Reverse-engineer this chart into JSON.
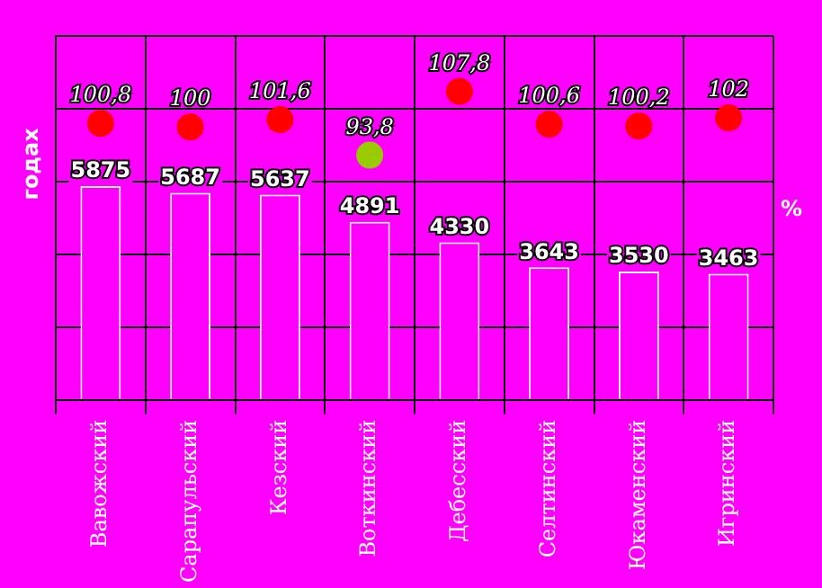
{
  "chart_data": {
    "type": "bar",
    "ylabel": "годах",
    "y2label": "%",
    "categories": [
      "Вавожский",
      "Сарапульский",
      "Кезский",
      "Воткинский",
      "Дебесский",
      "Селтинский",
      "Юкаменский",
      "Игринский"
    ],
    "series": [
      {
        "color": "#ff00ff",
        "values": [
          5875,
          5687,
          5637,
          4891,
          4330,
          3643,
          3530,
          3463
        ]
      },
      {
        "type": "scatter",
        "axis": "y2",
        "colors": [
          "#ff0000",
          "#ff0000",
          "#ff0000",
          "#99cc00",
          "#ff0000",
          "#ff0000",
          "#ff0000",
          "#ff0000"
        ],
        "values": [
          100.8,
          100,
          101.6,
          93.8,
          107.8,
          100.6,
          100.2,
          102
        ],
        "value_labels": [
          "100,8",
          "100",
          "101,6",
          "93,8",
          "107,8",
          "100,6",
          "100,2",
          "102"
        ]
      }
    ],
    "ylim": [
      0,
      10000
    ],
    "yticks": [
      0,
      2000,
      4000,
      6000,
      8000,
      10000
    ],
    "y2lim": [
      40,
      120
    ],
    "tick_labels": "x",
    "grid": true,
    "marker": "circle",
    "data_labels": true
  }
}
